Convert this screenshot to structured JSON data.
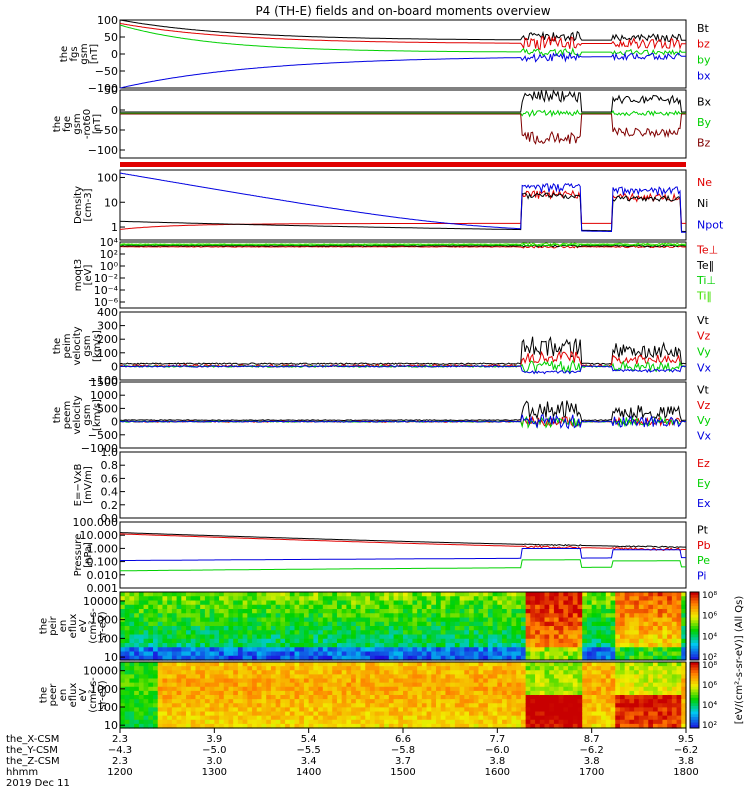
{
  "title": "P4 (TH-E) fields and on-board moments overview",
  "colors": {
    "black": "#000000",
    "red": "#e00000",
    "green": "#00d000",
    "blue": "#0000e0",
    "darkred": "#800000",
    "lime": "#40e000"
  },
  "chart_data": [
    {
      "type": "line",
      "name": "fgs",
      "ylabel_lines": [
        "the",
        "fgs",
        "gsm",
        "[nT]"
      ],
      "ylim": [
        -100,
        100
      ],
      "yticks": [
        "100",
        "50",
        "0",
        "−50",
        "−100"
      ],
      "tick_values": [
        100,
        50,
        0,
        -50,
        -100
      ],
      "legend": [
        {
          "label": "Bt",
          "color": "#000000"
        },
        {
          "label": "bz",
          "color": "#e00000"
        },
        {
          "label": "by",
          "color": "#00d000"
        },
        {
          "label": "bx",
          "color": "#0000e0"
        }
      ]
    },
    {
      "type": "line",
      "name": "fge",
      "ylabel_lines": [
        "the",
        "fge",
        "gsm",
        "-rot60",
        "[nT]"
      ],
      "ylim": [
        -120,
        50
      ],
      "yticks": [
        "50",
        "0",
        "−50",
        "−100"
      ],
      "tick_values": [
        50,
        0,
        -50,
        -100
      ],
      "legend": [
        {
          "label": "Bx",
          "color": "#000000"
        },
        {
          "label": "By",
          "color": "#00d000"
        },
        {
          "label": "Bz",
          "color": "#800000"
        }
      ]
    },
    {
      "type": "line",
      "name": "density",
      "ylabel_lines": [
        "Density",
        "[cm-3]"
      ],
      "scale": "log",
      "ylim": [
        0.3,
        200
      ],
      "yticks": [
        "100",
        "10",
        "1"
      ],
      "tick_values": [
        100,
        10,
        1
      ],
      "legend": [
        {
          "label": "Ne",
          "color": "#e00000"
        },
        {
          "label": "Ni",
          "color": "#000000"
        },
        {
          "label": "Npot",
          "color": "#0000e0"
        }
      ]
    },
    {
      "type": "line",
      "name": "temperature",
      "ylabel_lines": [
        "moqt3",
        "[eV]"
      ],
      "scale": "log",
      "ylim": [
        1e-07,
        10000.0
      ],
      "yticks": [
        "10⁴",
        "10²",
        "10⁰",
        "10⁻²",
        "10⁻⁴",
        "10⁻⁶"
      ],
      "tick_values": [
        10000.0,
        100.0,
        1,
        0.01,
        0.0001,
        1e-06
      ],
      "legend": [
        {
          "label": "Te⊥",
          "color": "#e00000"
        },
        {
          "label": "Te‖",
          "color": "#000000"
        },
        {
          "label": "Ti⊥",
          "color": "#00d000"
        },
        {
          "label": "Ti‖",
          "color": "#40e000"
        }
      ]
    },
    {
      "type": "line",
      "name": "peim_velocity",
      "ylabel_lines": [
        "the",
        "peim",
        "velocity",
        "gsm",
        "[km/s]"
      ],
      "ylim": [
        -100,
        400
      ],
      "yticks": [
        "400",
        "300",
        "200",
        "100",
        "0",
        "−100"
      ],
      "tick_values": [
        400,
        300,
        200,
        100,
        0,
        -100
      ],
      "legend": [
        {
          "label": "Vt",
          "color": "#000000"
        },
        {
          "label": "Vz",
          "color": "#e00000"
        },
        {
          "label": "Vy",
          "color": "#00d000"
        },
        {
          "label": "Vx",
          "color": "#0000e0"
        }
      ]
    },
    {
      "type": "line",
      "name": "peem_velocity",
      "ylabel_lines": [
        "the",
        "peem",
        "velocity",
        "gsm",
        "[km/s]"
      ],
      "ylim": [
        -1000,
        1500
      ],
      "yticks": [
        "1500",
        "1000",
        "500",
        "0",
        "−500",
        "−1000"
      ],
      "tick_values": [
        1500,
        1000,
        500,
        0,
        -500,
        -1000
      ],
      "legend": [
        {
          "label": "Vt",
          "color": "#000000"
        },
        {
          "label": "Vz",
          "color": "#e00000"
        },
        {
          "label": "Vy",
          "color": "#00d000"
        },
        {
          "label": "Vx",
          "color": "#0000e0"
        }
      ]
    },
    {
      "type": "line",
      "name": "efield",
      "ylabel_lines": [
        "E=−VxB",
        "[mV/m]"
      ],
      "ylim": [
        0,
        1
      ],
      "yticks": [
        "1.0",
        "0.8",
        "0.6",
        "0.4",
        "0.2",
        "0.0"
      ],
      "tick_values": [
        1,
        0.8,
        0.6,
        0.4,
        0.2,
        0
      ],
      "legend": [
        {
          "label": "Ez",
          "color": "#e00000"
        },
        {
          "label": "Ey",
          "color": "#00d000"
        },
        {
          "label": "Ex",
          "color": "#0000e0"
        }
      ]
    },
    {
      "type": "line",
      "name": "pressure",
      "ylabel_lines": [
        "Pressure",
        "[nPa]"
      ],
      "scale": "log",
      "ylim": [
        0.001,
        100
      ],
      "yticks": [
        "100.000",
        "10.000",
        "1.000",
        "0.100",
        "0.010",
        "0.001"
      ],
      "tick_values": [
        100,
        10,
        1,
        0.1,
        0.01,
        0.001
      ],
      "legend": [
        {
          "label": "Pt",
          "color": "#000000"
        },
        {
          "label": "Pb",
          "color": "#e00000"
        },
        {
          "label": "Pe",
          "color": "#00d000"
        },
        {
          "label": "Pi",
          "color": "#0000e0"
        }
      ]
    },
    {
      "type": "heatmap",
      "name": "peir_eflux",
      "ylabel_lines": [
        "the",
        "peir",
        "en",
        "eflux",
        "eV",
        "(cm²-s-",
        "sr-eV)"
      ],
      "scale": "log",
      "ylim": [
        7,
        30000
      ],
      "yticks": [
        "10000",
        "1000",
        "100",
        "10"
      ],
      "tick_values": [
        10000,
        1000,
        100,
        10
      ]
    },
    {
      "type": "heatmap",
      "name": "peer_eflux",
      "ylabel_lines": [
        "the",
        "peer",
        "en",
        "eflux",
        "eV",
        "(cm²-s-",
        "sr-eV)"
      ],
      "scale": "log",
      "ylim": [
        7,
        30000
      ],
      "yticks": [
        "10000",
        "1000",
        "100",
        "10"
      ],
      "tick_values": [
        10000,
        1000,
        100,
        10
      ]
    }
  ],
  "colorbar": {
    "label": "[eV/(cm²-s-sr-eV)] (All Qs)",
    "upper_ticks": [
      "10⁸",
      "10⁶",
      "10⁴",
      "10²"
    ],
    "lower_ticks": [
      "10⁸",
      "10⁶",
      "10⁴",
      "10²"
    ]
  },
  "xaxis": {
    "rows": [
      {
        "label": "the_X-CSM",
        "values": [
          "2.3",
          "3.9",
          "5.4",
          "6.6",
          "7.7",
          "8.7",
          "9.5"
        ]
      },
      {
        "label": "the_Y-CSM",
        "values": [
          "−4.3",
          "−5.0",
          "−5.5",
          "−5.8",
          "−6.0",
          "−6.2",
          "−6.2"
        ]
      },
      {
        "label": "the_Z-CSM",
        "values": [
          "2.3",
          "3.0",
          "3.4",
          "3.7",
          "3.8",
          "3.8",
          "3.8"
        ]
      },
      {
        "label": "hhmm",
        "values": [
          "1200",
          "1300",
          "1400",
          "1500",
          "1600",
          "1700",
          "1800"
        ]
      }
    ],
    "date": "2019 Dec 11",
    "time_range": [
      1200,
      1800
    ]
  }
}
